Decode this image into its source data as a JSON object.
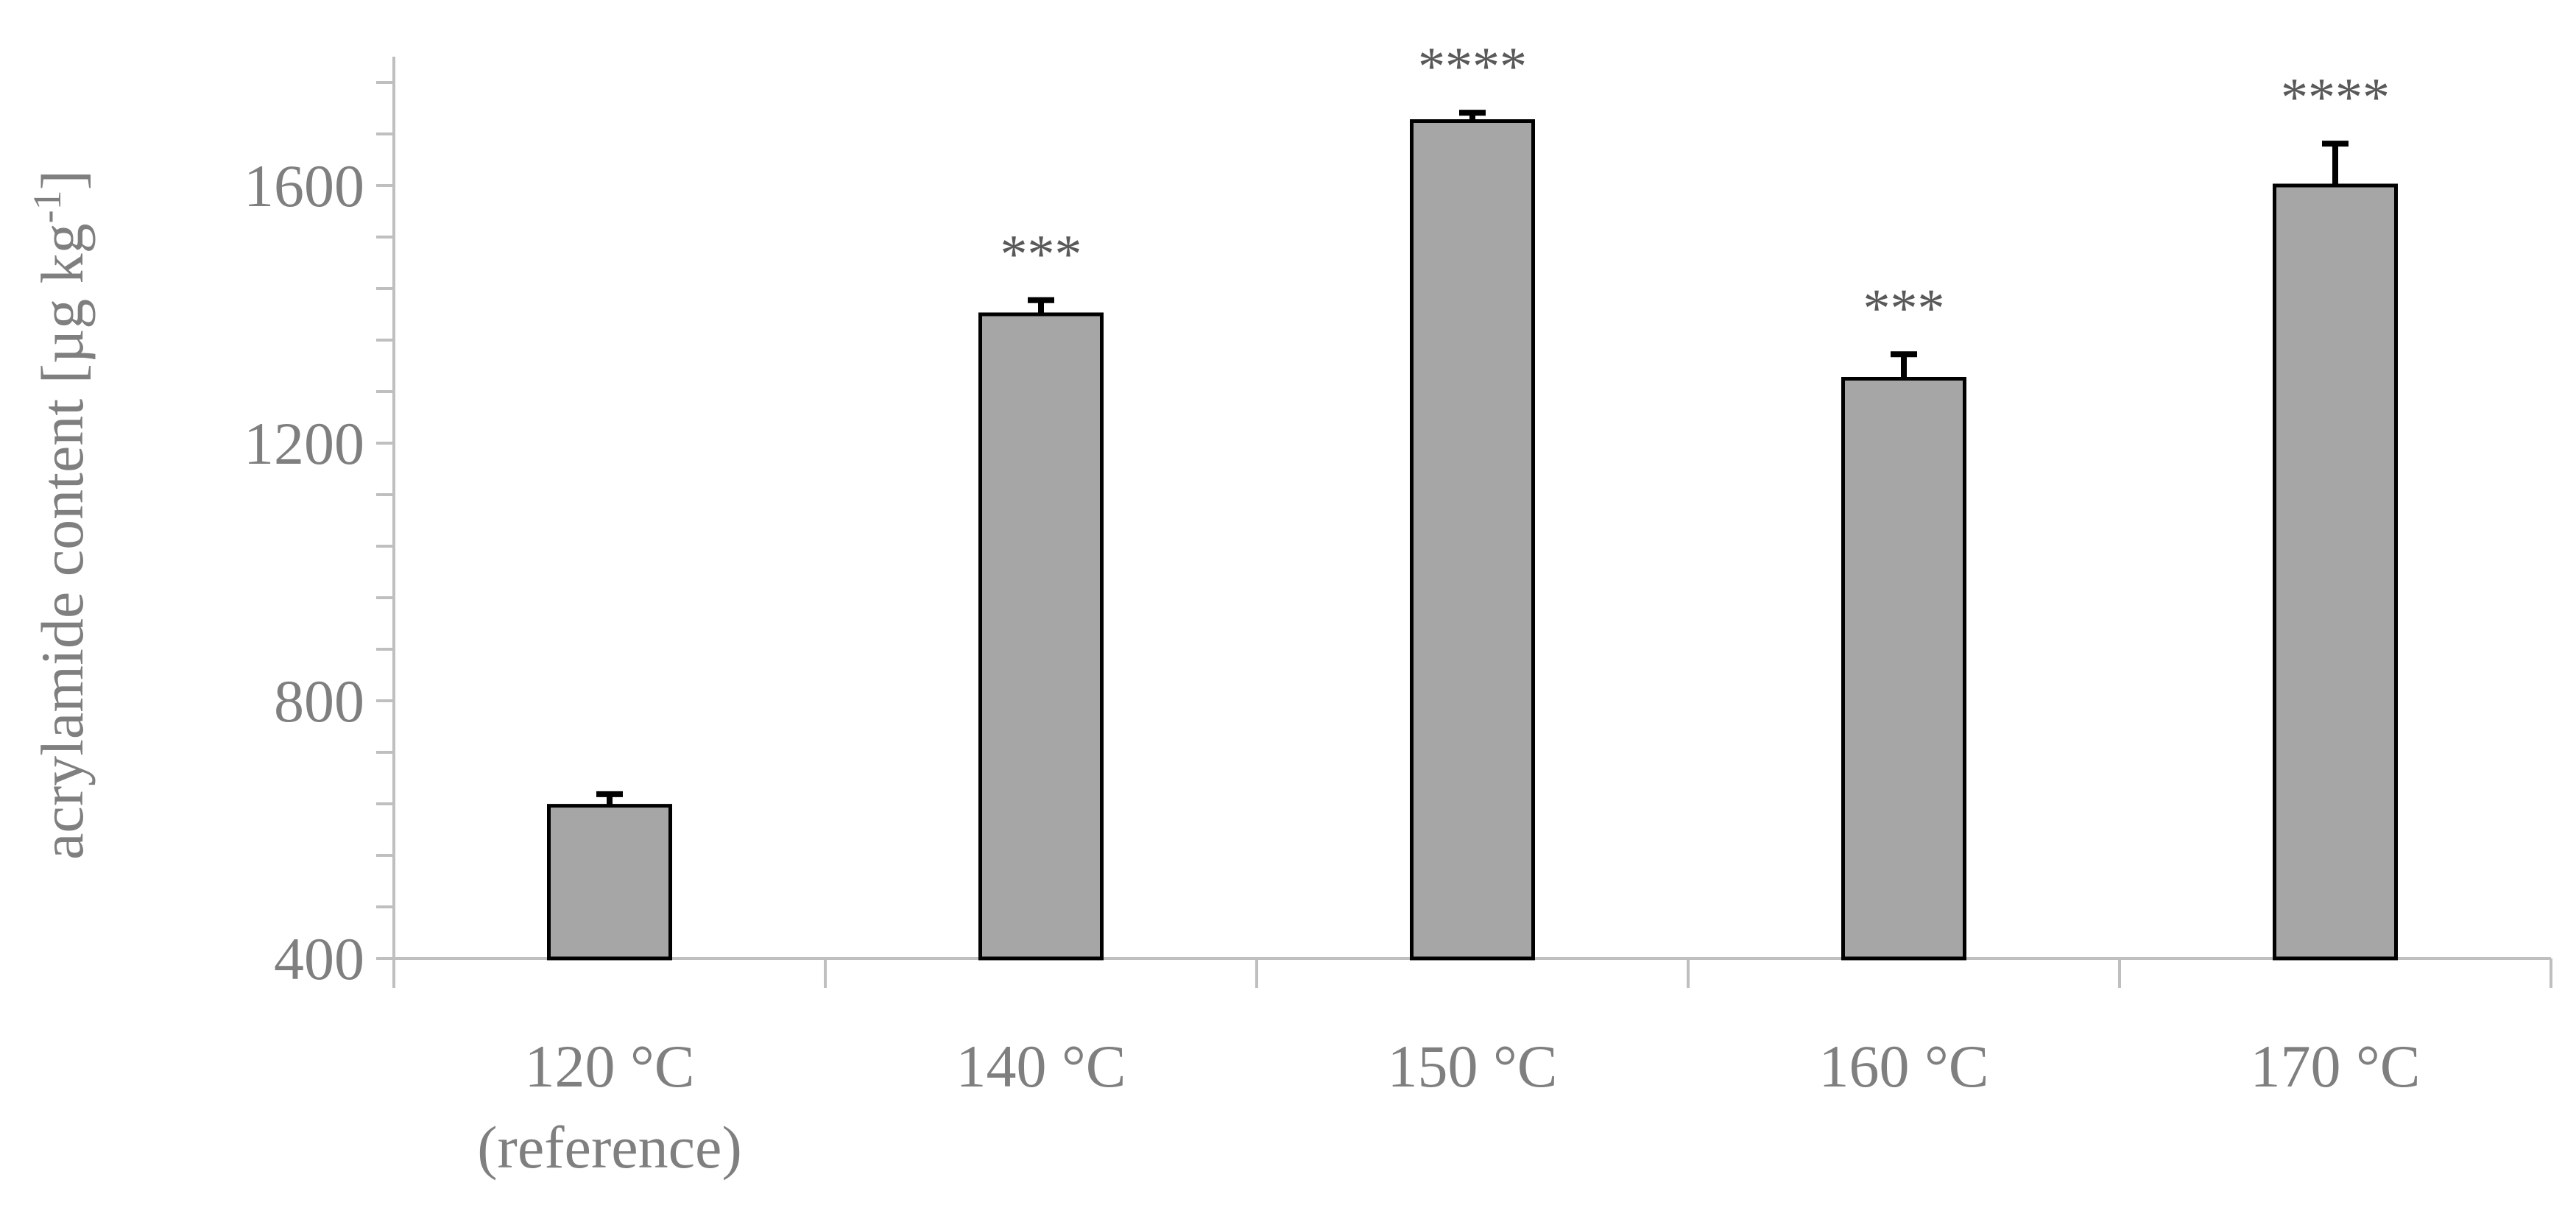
{
  "chart_data": {
    "type": "bar",
    "title": "",
    "xlabel": "",
    "ylabel": {
      "main": "acrylamide content [µg kg",
      "sup": "-1",
      "end": "]"
    },
    "categories": [
      [
        "120 °C",
        "(reference)"
      ],
      [
        "140 °C"
      ],
      [
        "150 °C"
      ],
      [
        "160 °C"
      ],
      [
        "170 °C"
      ]
    ],
    "values": [
      637,
      1400,
      1700,
      1300,
      1600
    ],
    "error_upper": [
      18,
      22,
      13,
      38,
      65
    ],
    "significance": [
      "",
      "***",
      "****",
      "***",
      "****"
    ],
    "ylim": [
      400,
      1800
    ],
    "yticks": [
      400,
      800,
      1200,
      1600
    ],
    "minor_tick_step": 80,
    "grid": false,
    "legend": "none",
    "colors": {
      "bar_fill": "#a6a6a6",
      "bar_stroke": "#000000",
      "axis": "#bfbfbf",
      "label_text": "#7f7f7f",
      "significance_text": "#595959"
    }
  }
}
